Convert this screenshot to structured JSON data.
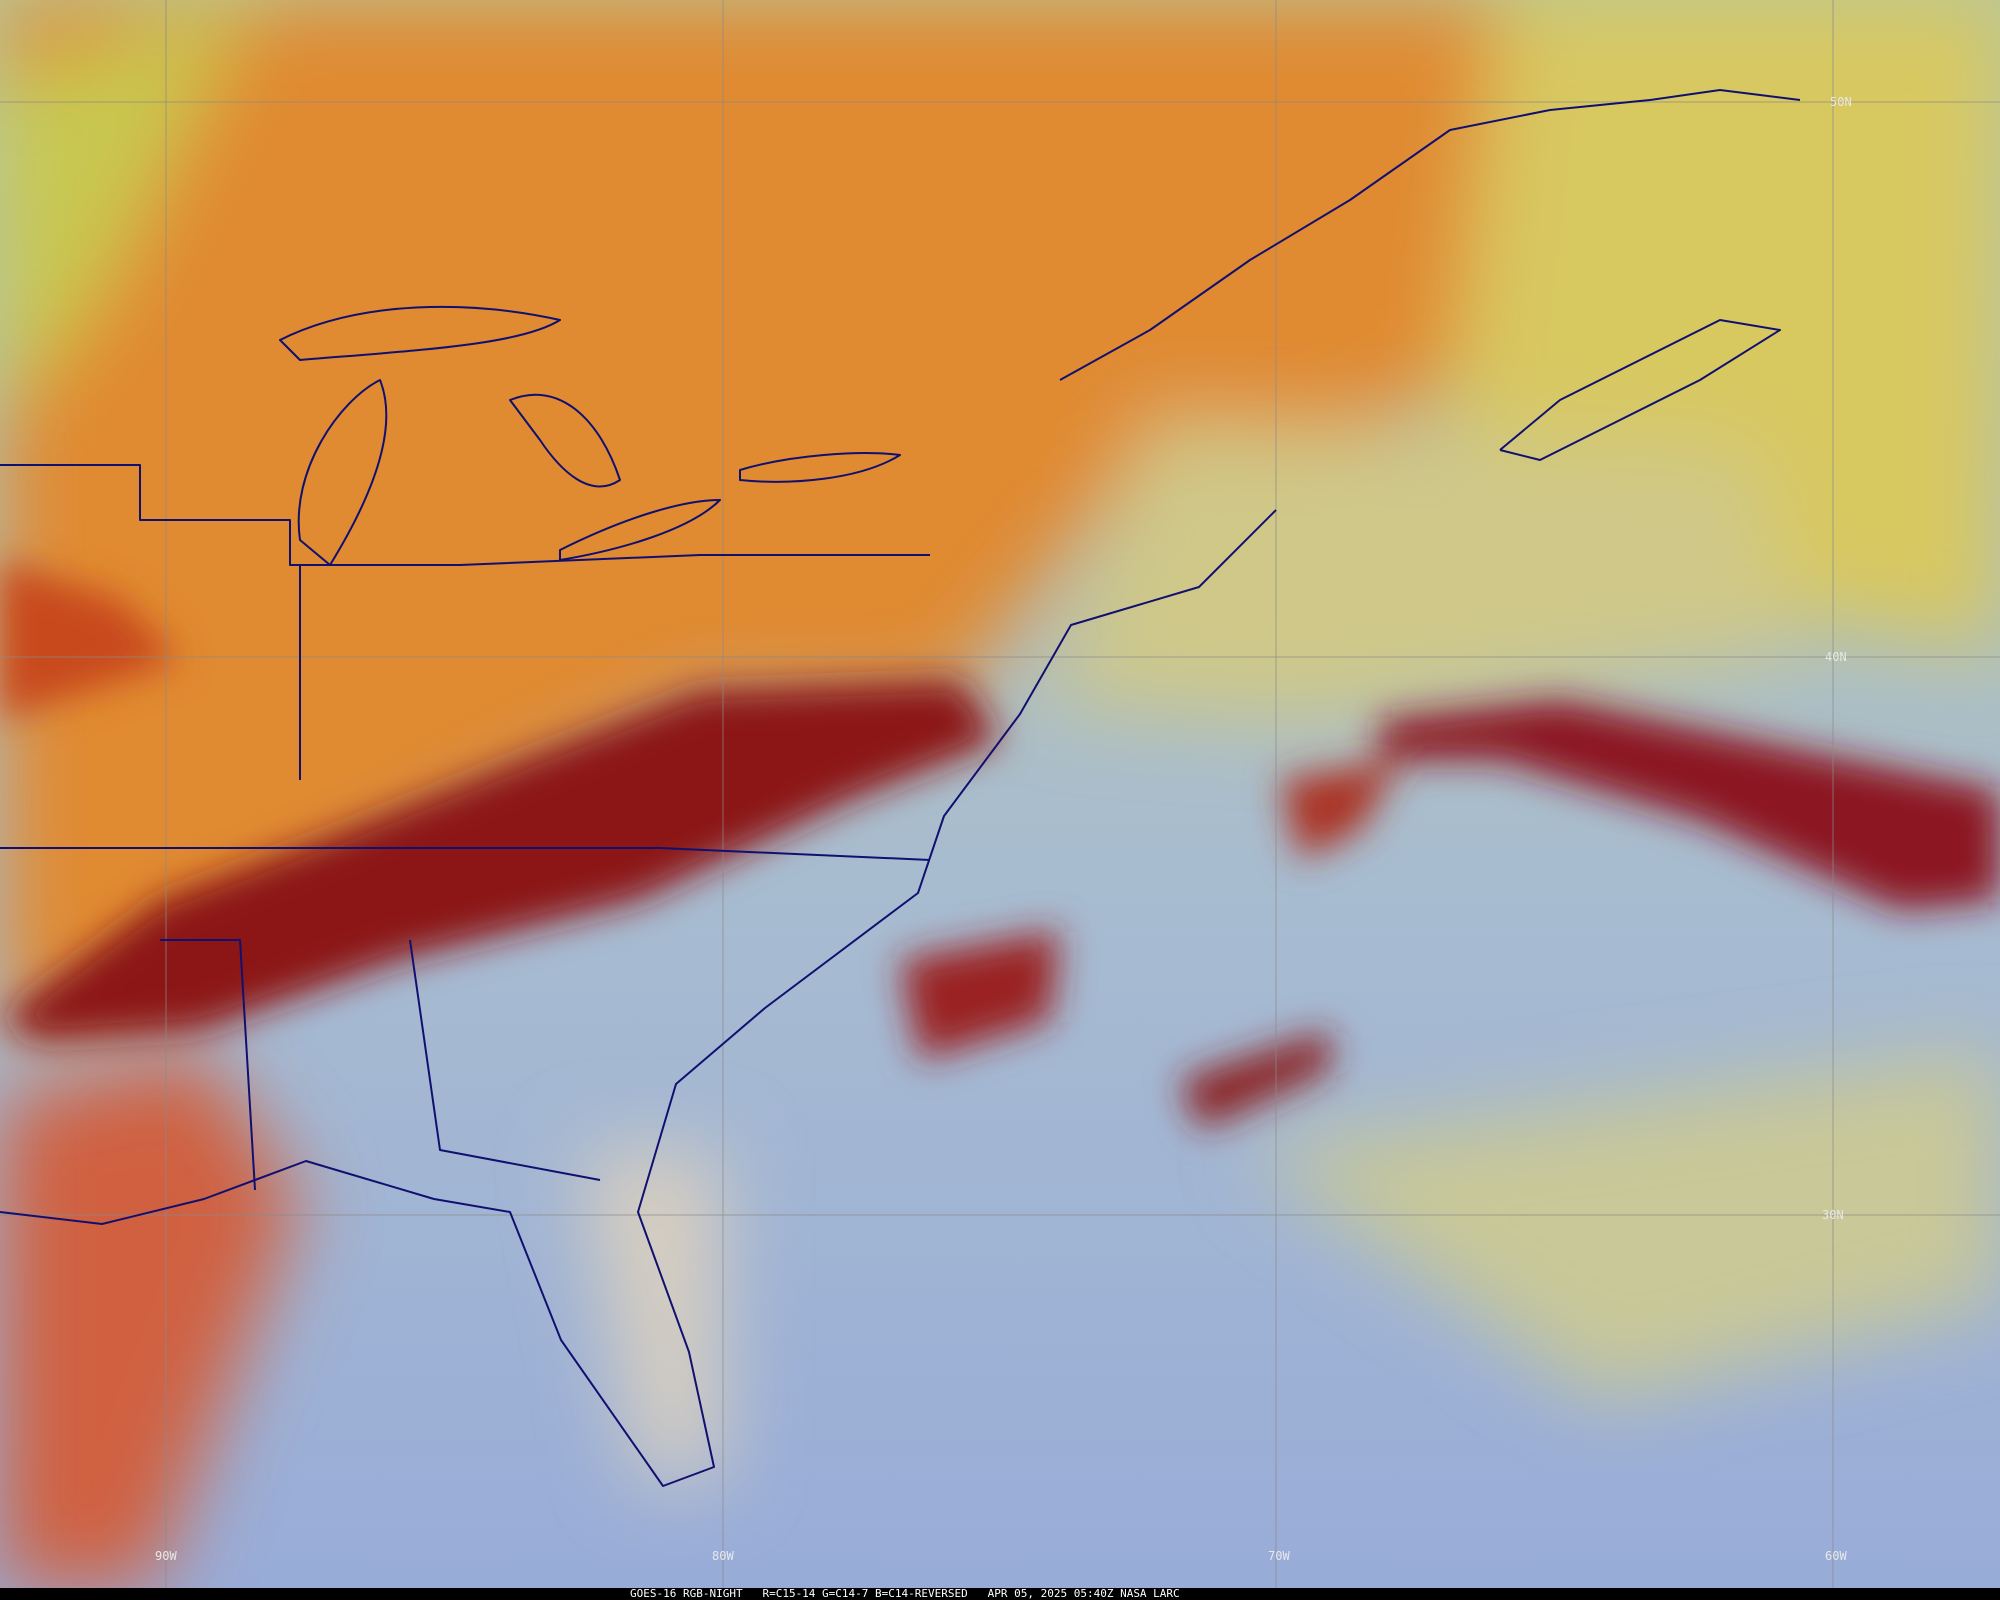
{
  "map": {
    "latitude_labels": [
      "50N",
      "40N",
      "30N"
    ],
    "longitude_labels": [
      "90W",
      "80W",
      "70W",
      "60W"
    ],
    "footer": "GOES-16 RGB-NIGHT   R=C15-14 G=C14-7 B=C14-REVERSED   APR 05, 2025 05:40Z NASA LARC"
  }
}
